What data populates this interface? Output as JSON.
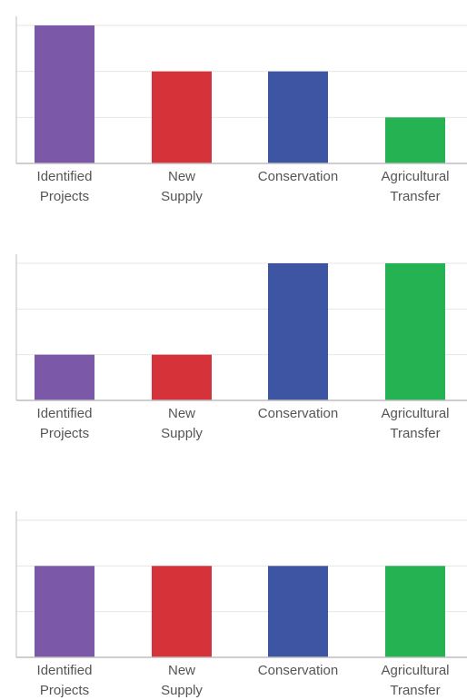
{
  "colors": {
    "identified_projects": "#7B59A8",
    "new_supply": "#D63239",
    "conservation": "#3E55A4",
    "agricultural_transfer": "#24B253",
    "gridline": "#E6E6E6",
    "axis": "#BDBDBD",
    "label_text": "#555555"
  },
  "category_labels": [
    [
      "Identified",
      "Projects"
    ],
    [
      "New",
      "Supply"
    ],
    [
      "Conservation"
    ],
    [
      "Agricultural",
      "Transfer"
    ]
  ],
  "chart_data": [
    {
      "type": "bar",
      "categories": [
        "Identified Projects",
        "New Supply",
        "Conservation",
        "Agricultural Transfer"
      ],
      "values": [
        3,
        2,
        2,
        1
      ],
      "ylim": [
        0,
        3
      ],
      "grid": true,
      "title": "",
      "xlabel": "",
      "ylabel": ""
    },
    {
      "type": "bar",
      "categories": [
        "Identified Projects",
        "New Supply",
        "Conservation",
        "Agricultural Transfer"
      ],
      "values": [
        1,
        1,
        3,
        3
      ],
      "ylim": [
        0,
        3
      ],
      "grid": true,
      "title": "",
      "xlabel": "",
      "ylabel": ""
    },
    {
      "type": "bar",
      "categories": [
        "Identified Projects",
        "New Supply",
        "Conservation",
        "Agricultural Transfer"
      ],
      "values": [
        2,
        2,
        2,
        2
      ],
      "ylim": [
        0,
        3
      ],
      "grid": true,
      "title": "",
      "xlabel": "",
      "ylabel": ""
    }
  ]
}
